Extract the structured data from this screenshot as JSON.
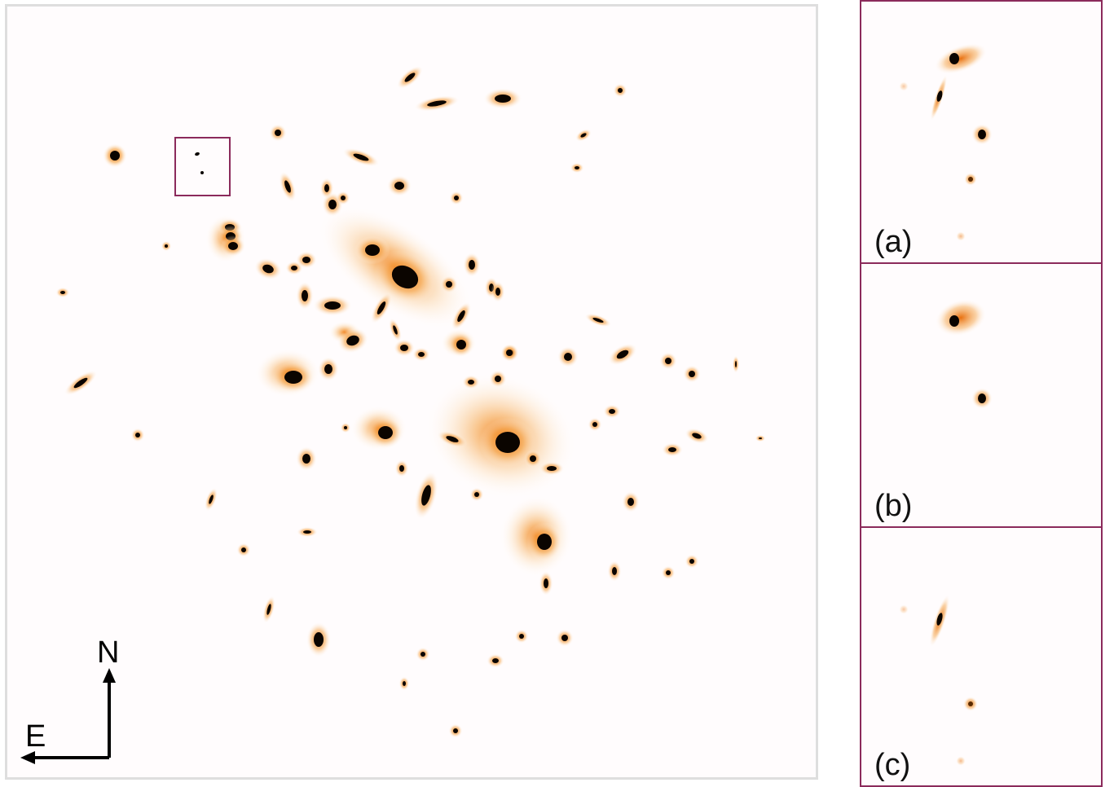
{
  "compass": {
    "north": "N",
    "east": "E"
  },
  "insets": [
    {
      "label": "(a)"
    },
    {
      "label": "(b)"
    },
    {
      "label": "(c)"
    }
  ],
  "colors": {
    "highlight_box": "#8b2a5b",
    "galaxy_core": "#0b0500",
    "galaxy_halo": "#f08c1e",
    "background": "#fffcfd",
    "frame": "#dedede"
  }
}
